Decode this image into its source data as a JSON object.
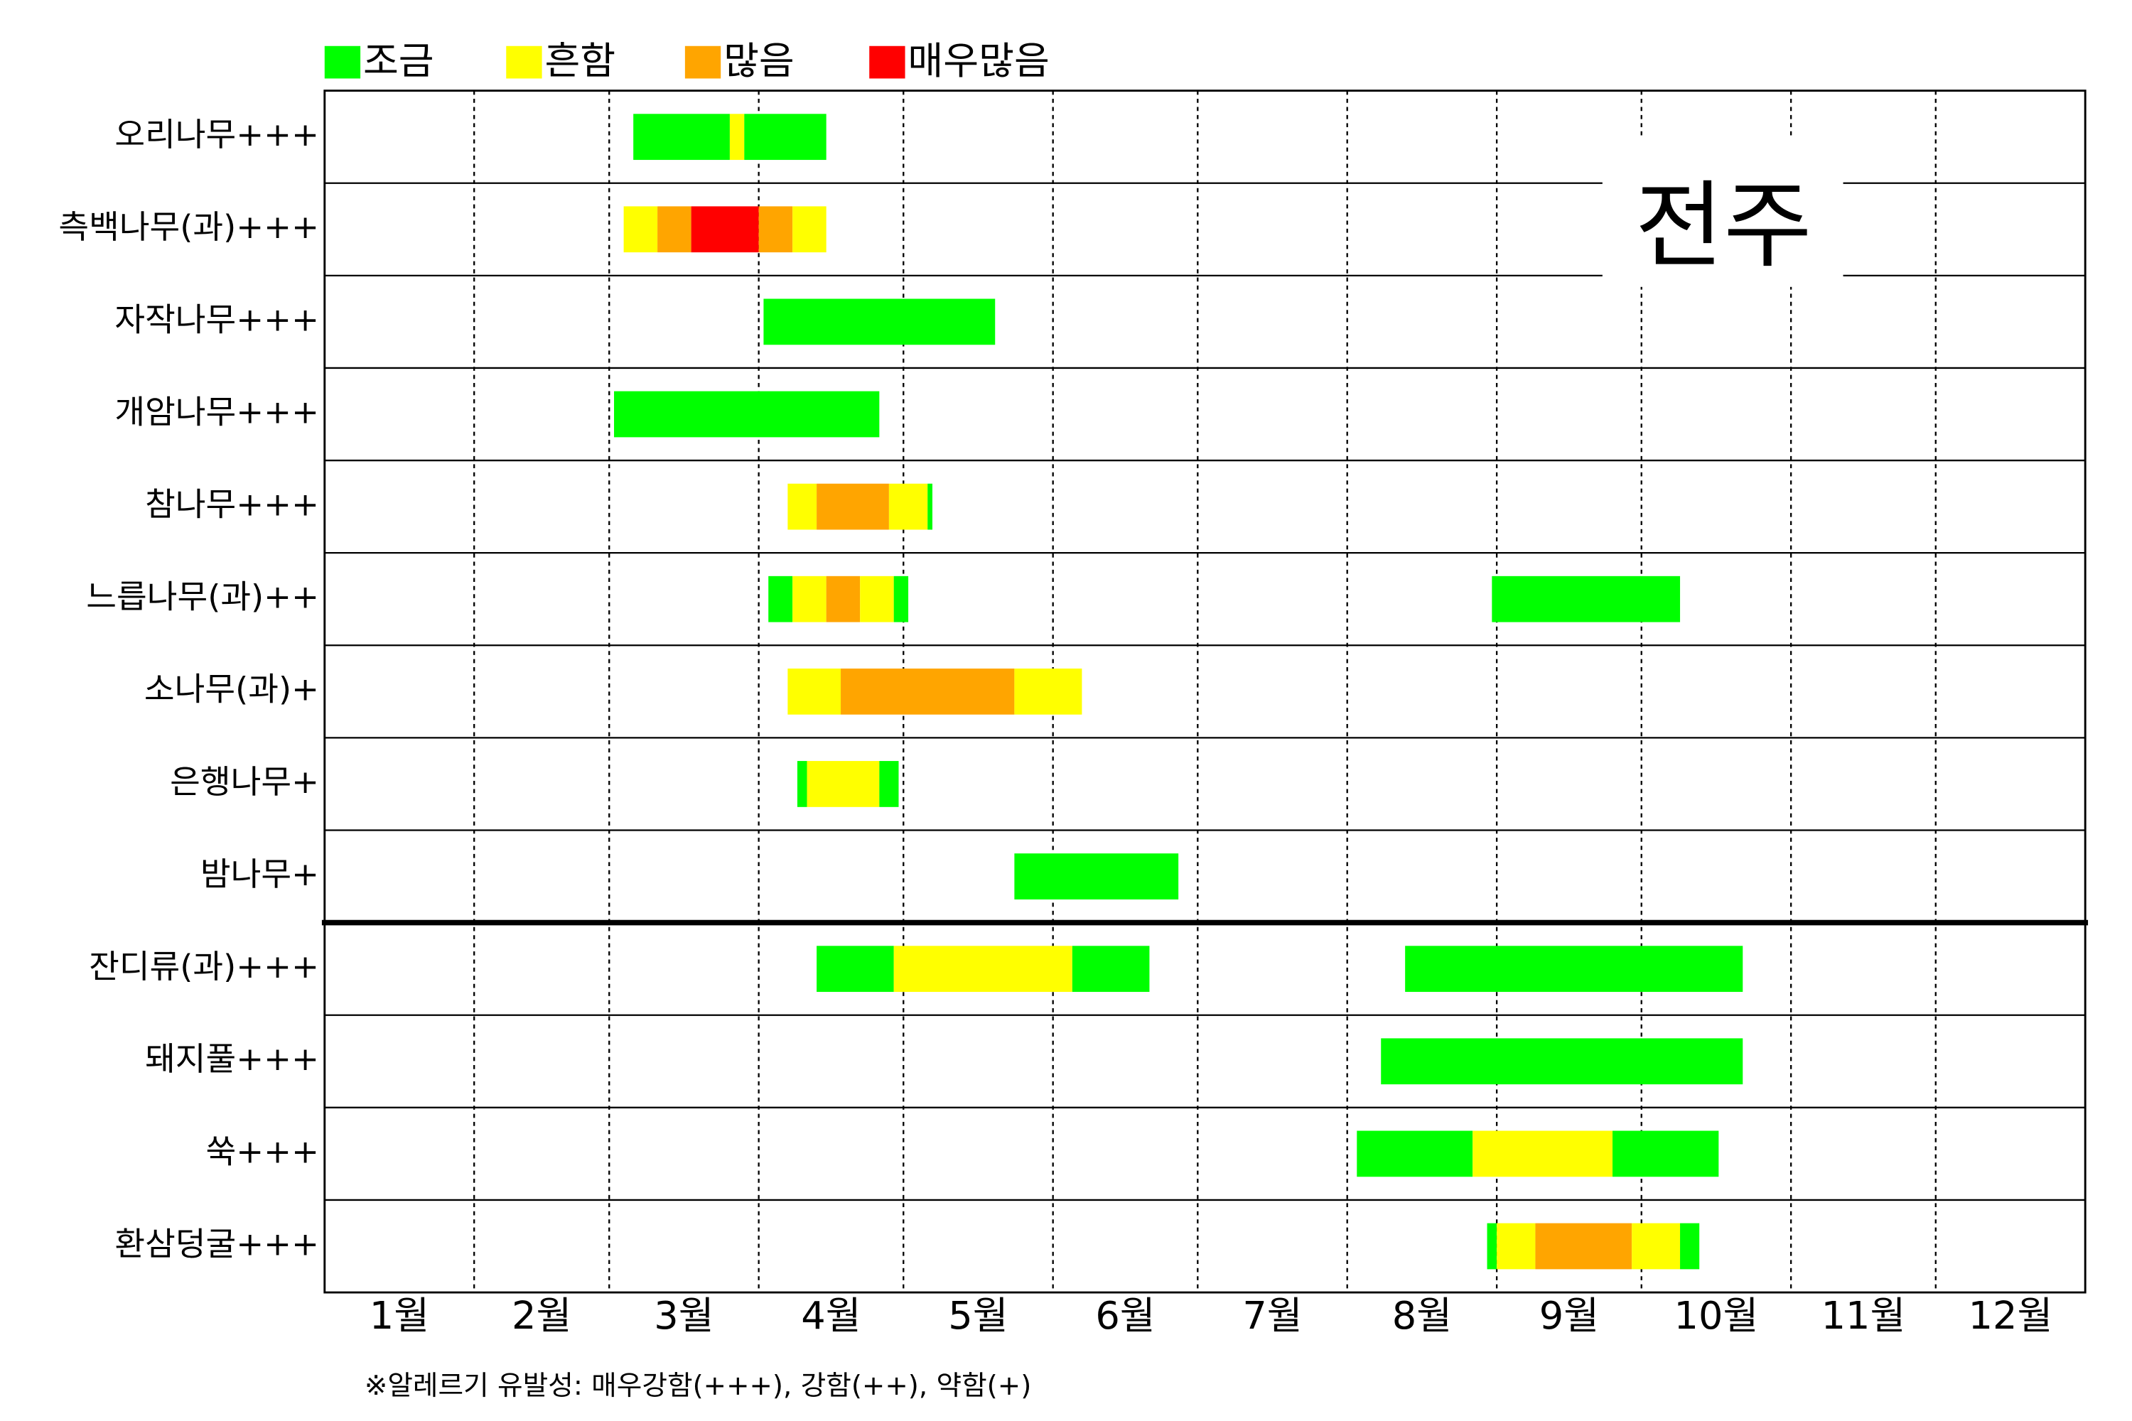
{
  "chart_data": {
    "type": "timeline",
    "annotation": "전주",
    "footnote": "※알레르기 유발성: 매우강함(+++), 강함(++), 약함(+)",
    "legend": [
      {
        "name": "조금",
        "color": "#00ff00"
      },
      {
        "name": "흔함",
        "color": "#ffff00"
      },
      {
        "name": "많음",
        "color": "#ffa500"
      },
      {
        "name": "매우많음",
        "color": "#ff0000"
      }
    ],
    "months": [
      "1월",
      "2월",
      "3월",
      "4월",
      "5월",
      "6월",
      "7월",
      "8월",
      "9월",
      "10월",
      "11월",
      "12월"
    ],
    "xlim": [
      0,
      365
    ],
    "xticks": [
      31,
      59,
      90,
      120,
      151,
      181,
      212,
      243,
      273,
      304,
      334
    ],
    "divider_after": 9,
    "rows": [
      {
        "name": "오리나무+++",
        "segments": [
          {
            "start": 64,
            "end": 84,
            "level": 0
          },
          {
            "start": 84,
            "end": 87,
            "level": 1
          },
          {
            "start": 87,
            "end": 104,
            "level": 0
          }
        ]
      },
      {
        "name": "측백나무(과)+++",
        "segments": [
          {
            "start": 62,
            "end": 69,
            "level": 1
          },
          {
            "start": 69,
            "end": 76,
            "level": 2
          },
          {
            "start": 76,
            "end": 90,
            "level": 3
          },
          {
            "start": 90,
            "end": 97,
            "level": 2
          },
          {
            "start": 97,
            "end": 104,
            "level": 1
          }
        ]
      },
      {
        "name": "자작나무+++",
        "segments": [
          {
            "start": 91,
            "end": 139,
            "level": 0
          }
        ]
      },
      {
        "name": "개암나무+++",
        "segments": [
          {
            "start": 60,
            "end": 115,
            "level": 0
          }
        ]
      },
      {
        "name": "참나무+++",
        "segments": [
          {
            "start": 96,
            "end": 102,
            "level": 1
          },
          {
            "start": 102,
            "end": 117,
            "level": 2
          },
          {
            "start": 117,
            "end": 125,
            "level": 1
          },
          {
            "start": 125,
            "end": 126,
            "level": 0
          }
        ]
      },
      {
        "name": "느릅나무(과)++",
        "segments": [
          {
            "start": 92,
            "end": 97,
            "level": 0
          },
          {
            "start": 97,
            "end": 104,
            "level": 1
          },
          {
            "start": 104,
            "end": 111,
            "level": 2
          },
          {
            "start": 111,
            "end": 118,
            "level": 1
          },
          {
            "start": 118,
            "end": 121,
            "level": 0
          },
          {
            "start": 242,
            "end": 281,
            "level": 0
          }
        ]
      },
      {
        "name": "소나무(과)+",
        "segments": [
          {
            "start": 96,
            "end": 107,
            "level": 1
          },
          {
            "start": 107,
            "end": 143,
            "level": 2
          },
          {
            "start": 143,
            "end": 157,
            "level": 1
          }
        ]
      },
      {
        "name": "은행나무+",
        "segments": [
          {
            "start": 98,
            "end": 100,
            "level": 0
          },
          {
            "start": 100,
            "end": 115,
            "level": 1
          },
          {
            "start": 115,
            "end": 119,
            "level": 0
          }
        ]
      },
      {
        "name": "밤나무+",
        "segments": [
          {
            "start": 143,
            "end": 177,
            "level": 0
          }
        ]
      },
      {
        "name": "잔디류(과)+++",
        "segments": [
          {
            "start": 102,
            "end": 118,
            "level": 0
          },
          {
            "start": 118,
            "end": 155,
            "level": 1
          },
          {
            "start": 155,
            "end": 171,
            "level": 0
          },
          {
            "start": 224,
            "end": 294,
            "level": 0
          }
        ]
      },
      {
        "name": "돼지풀+++",
        "segments": [
          {
            "start": 219,
            "end": 294,
            "level": 0
          }
        ]
      },
      {
        "name": "쑥+++",
        "segments": [
          {
            "start": 214,
            "end": 238,
            "level": 0
          },
          {
            "start": 238,
            "end": 267,
            "level": 1
          },
          {
            "start": 267,
            "end": 289,
            "level": 0
          }
        ]
      },
      {
        "name": "환삼덩굴+++",
        "segments": [
          {
            "start": 241,
            "end": 243,
            "level": 0
          },
          {
            "start": 243,
            "end": 251,
            "level": 1
          },
          {
            "start": 251,
            "end": 271,
            "level": 2
          },
          {
            "start": 271,
            "end": 281,
            "level": 1
          },
          {
            "start": 281,
            "end": 285,
            "level": 0
          }
        ]
      }
    ]
  }
}
